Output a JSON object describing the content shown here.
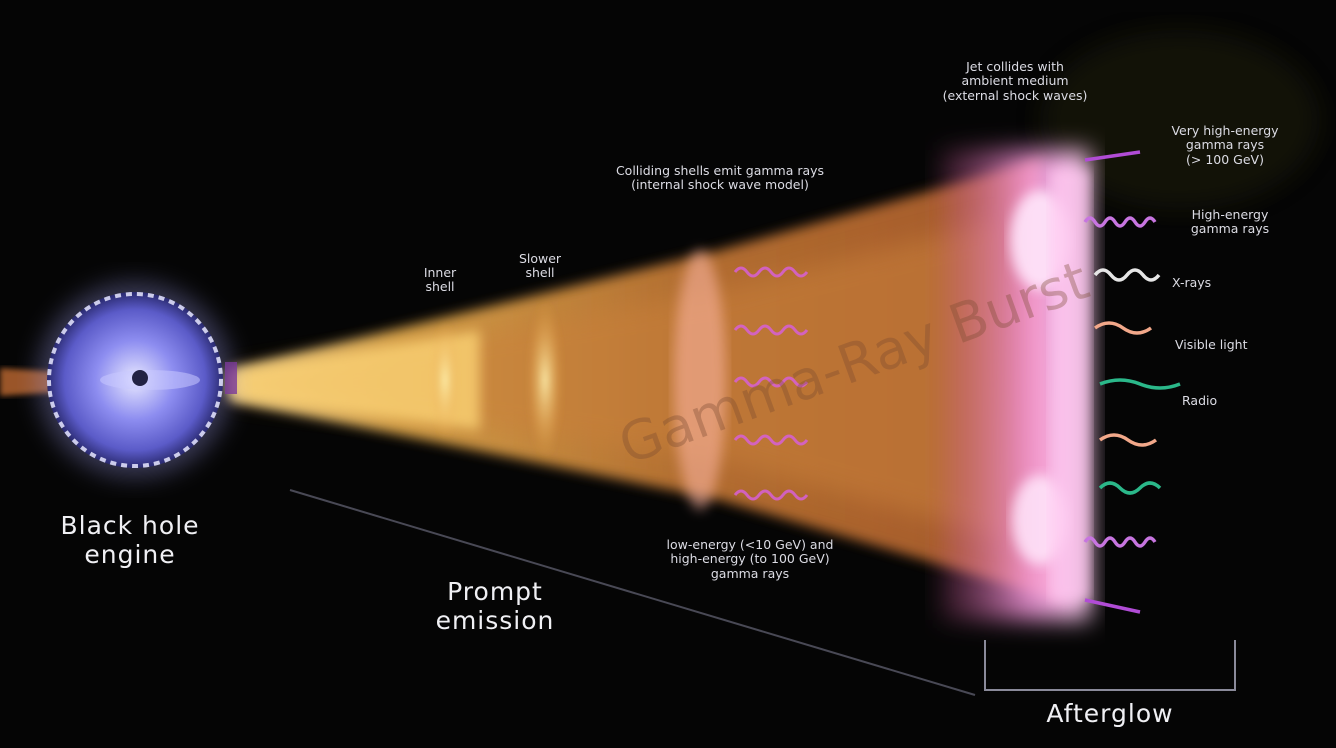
{
  "labels": {
    "engine": "Black hole\nengine",
    "prompt": "Prompt\nemission",
    "afterglow": "Afterglow",
    "inner_shell": "Inner\nshell",
    "slower_shell": "Slower\nshell",
    "shell_collisions": "Colliding shells emit gamma rays\n(internal shock wave model)",
    "ambient": "Jet collides with\nambient medium\n(external shock waves)",
    "prompt_energies": "low-energy (<10 GeV) and\nhigh-energy (to 100 GeV)\ngamma rays",
    "watermark": "Gamma-Ray Burst"
  },
  "emission_bands": [
    {
      "name": "Very high-energy gamma rays (> 100 GeV)",
      "label": "Very high-energy\ngamma rays\n(> 100 GeV)",
      "color": "#b14cd6"
    },
    {
      "name": "High-energy gamma rays",
      "label": "High-energy\ngamma rays",
      "color": "#c775e0"
    },
    {
      "name": "X-rays",
      "label": "X-rays",
      "color": "#e6e6e6"
    },
    {
      "name": "Visible light",
      "label": "Visible light",
      "color": "#f2a88a"
    },
    {
      "name": "Radio",
      "label": "Radio",
      "color": "#2bb88a"
    }
  ],
  "colors": {
    "jet_core": "#fff5c0",
    "jet_warm": "#d88a3a",
    "jet_outer": "#b75e2a",
    "shock_front": "#ff9ee6",
    "engine_glow": "#8d8df0"
  }
}
